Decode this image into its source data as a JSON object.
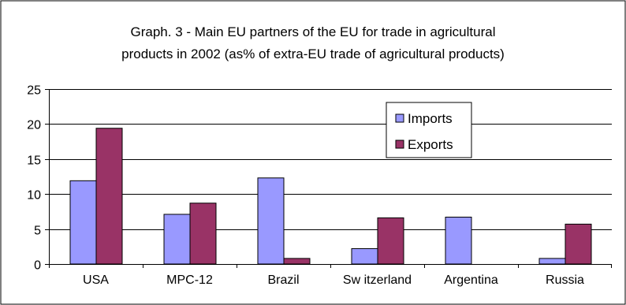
{
  "chart_data": {
    "type": "bar",
    "title_lines": [
      "Graph. 3 - Main EU partners of the EU for trade in agricultural",
      "products in 2002 (as% of extra-EU trade of agricultural products)"
    ],
    "categories": [
      "USA",
      "MPC-12",
      "Brazil",
      "Sw itzerland",
      "Argentina",
      "Russia"
    ],
    "series": [
      {
        "name": "Imports",
        "values": [
          11.9,
          7.1,
          12.3,
          2.2,
          6.7,
          0.8
        ],
        "color": "#9999ff"
      },
      {
        "name": "Exports",
        "values": [
          19.4,
          8.7,
          0.8,
          6.6,
          0,
          5.7
        ],
        "color": "#993366"
      }
    ],
    "ylim": [
      0,
      25
    ],
    "yticks": [
      "0",
      "5",
      "10",
      "15",
      "20",
      "25"
    ],
    "grid": true,
    "legend_position": "upper-right"
  }
}
